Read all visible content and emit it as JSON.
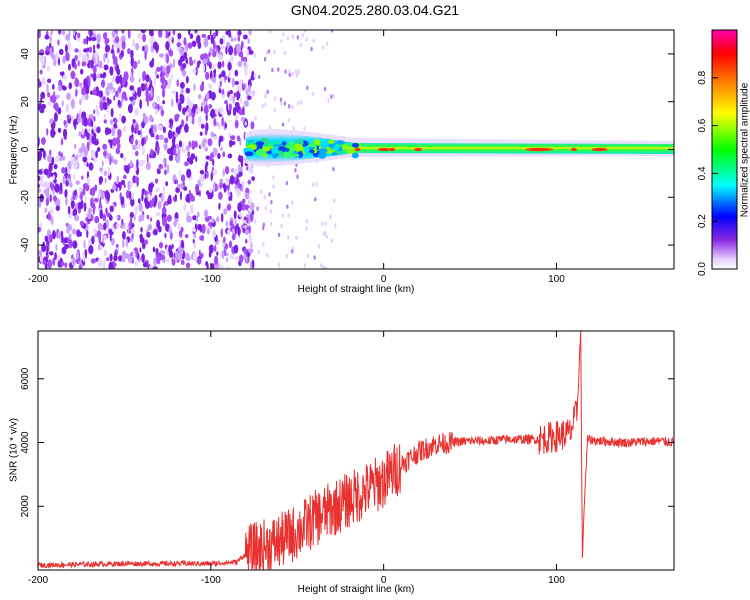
{
  "title": "GN04.2025.280.03.04.G21",
  "chart_data": [
    {
      "type": "heatmap",
      "xlabel": "Height of straight line (km)",
      "ylabel": "Frequency (Hz)",
      "xlim": [
        -200,
        168
      ],
      "ylim": [
        -50,
        50
      ],
      "x_ticks": [
        -200,
        -100,
        0,
        100
      ],
      "y_ticks": [
        -40,
        -20,
        0,
        20,
        40
      ],
      "colorbar": {
        "label": "Normalized spectral amplitude",
        "range": [
          0,
          1
        ],
        "ticks": [
          "0.0",
          "0.2",
          "0.4",
          "0.6",
          "0.8"
        ],
        "colormap": "hsv-like (white, violet, blue, cyan, green, yellow, orange, red, magenta)"
      },
      "regions": [
        {
          "x_range": [
            -200,
            -80
          ],
          "description": "noise",
          "amplitude": 0.1
        },
        {
          "x_range": [
            -80,
            -15
          ],
          "center_hz": 0,
          "amplitude": 0.45
        },
        {
          "x_range": [
            -15,
            168
          ],
          "center_hz": 0,
          "amplitude": 0.9
        }
      ]
    },
    {
      "type": "line",
      "xlabel": "Height of straight line (km)",
      "ylabel": "SNR (10 * v/v)",
      "xlim": [
        -200,
        168
      ],
      "ylim": [
        0,
        7500
      ],
      "x_ticks": [
        -200,
        -100,
        0,
        100
      ],
      "y_ticks": [
        2000,
        4000,
        6000
      ],
      "color": "#e8302e",
      "series": [
        {
          "x": [
            -200,
            -150,
            -100,
            -85,
            -80,
            -70,
            -60,
            -50,
            -40,
            -30,
            -20,
            -10,
            0,
            10,
            20,
            30,
            40,
            50,
            60,
            70,
            80,
            90,
            100,
            108,
            112,
            114,
            115,
            116,
            118,
            125,
            140,
            160,
            168
          ],
          "values": [
            150,
            200,
            200,
            250,
            500,
            700,
            900,
            1200,
            1600,
            1900,
            2200,
            2500,
            2800,
            3300,
            3700,
            3950,
            4000,
            4050,
            4050,
            4100,
            4100,
            4100,
            4200,
            4300,
            5000,
            7500,
            250,
            2000,
            4100,
            4050,
            4000,
            4050,
            4000
          ]
        }
      ]
    }
  ]
}
